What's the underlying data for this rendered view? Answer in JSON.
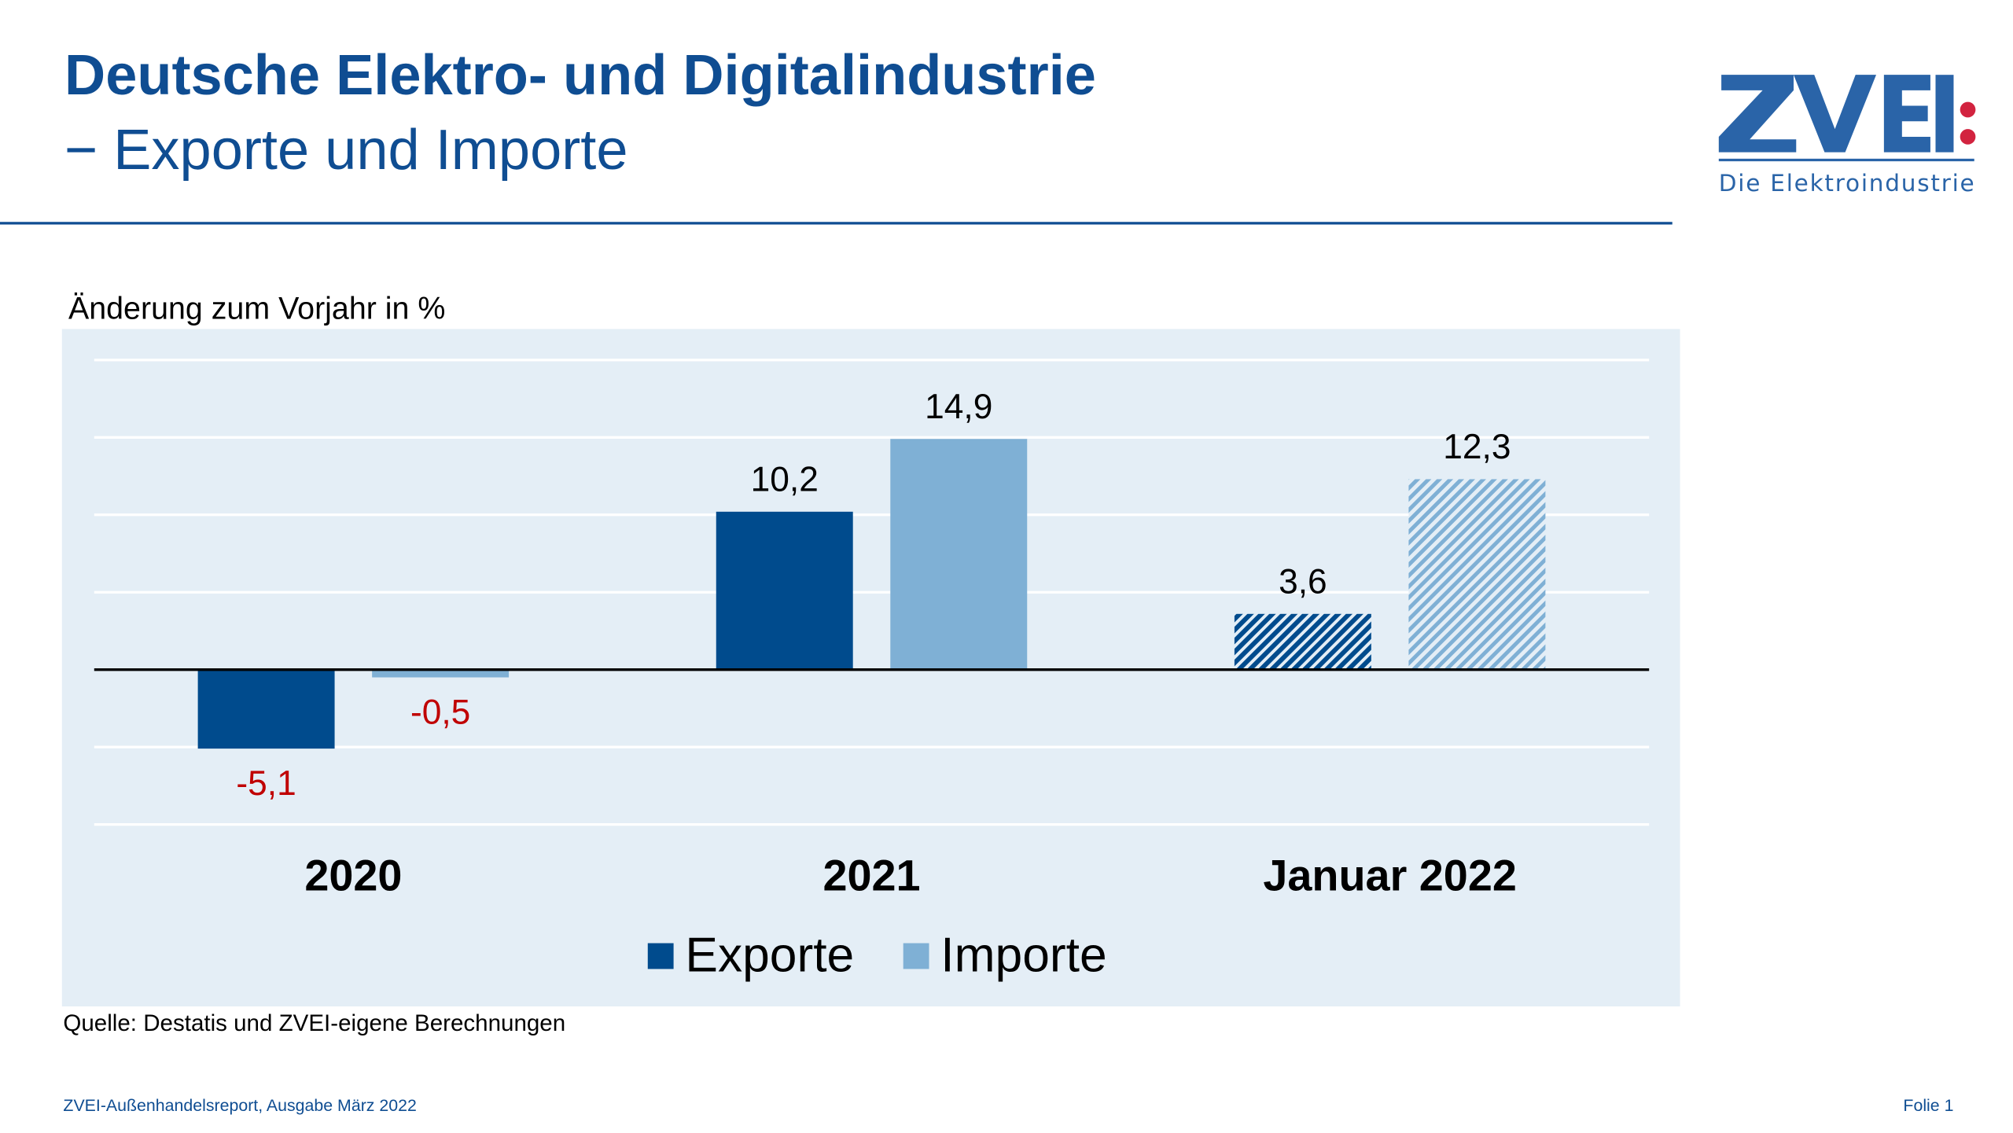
{
  "header": {
    "title": "Deutsche Elektro- und Digitalindustrie",
    "subtitle": "− Exporte und Importe"
  },
  "logo": {
    "text": "ZVEI",
    "tagline": "Die Elektroindustrie",
    "colors": {
      "blue": "#2a64a8",
      "red": "#d2233f"
    }
  },
  "chart_data": {
    "type": "bar",
    "ylabel": "Änderung zum Vorjahr in %",
    "categories": [
      "2020",
      "2021",
      "Januar 2022"
    ],
    "series": [
      {
        "name": "Exporte",
        "values": [
          -5.1,
          10.2,
          3.6
        ],
        "labels": [
          "-5,1",
          "10,2",
          "3,6"
        ],
        "color": "#004b8d"
      },
      {
        "name": "Importe",
        "values": [
          -0.5,
          14.9,
          12.3
        ],
        "labels": [
          "-0,5",
          "14,9",
          "12,3"
        ],
        "color": "#7fb0d5"
      }
    ],
    "hatched_categories": [
      "Januar 2022"
    ],
    "negative_label_color": "#c00000",
    "ylim": [
      -10,
      20
    ],
    "grid": true,
    "gridline_step": 5,
    "y_tick_labels_shown": false,
    "legend": "bottom-center",
    "background": "#e4eef6"
  },
  "source": "Quelle: Destatis und ZVEI-eigene Berechnungen",
  "footer": {
    "left": "ZVEI-Außenhandelsreport, Ausgabe März 2022",
    "right": "Folie 1"
  }
}
